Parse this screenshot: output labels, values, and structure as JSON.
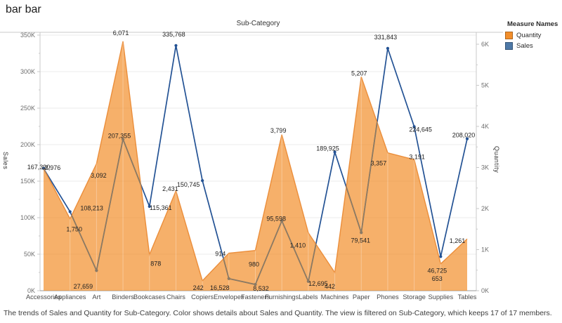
{
  "title": "bar bar",
  "caption": "The trends of Sales and Quantity for Sub-Category.  Color shows details about Sales and Quantity. The view is filtered on Sub-Category, which keeps 17 of 17 members.",
  "legend": {
    "title": "Measure Names",
    "items": [
      {
        "label": "Quantity",
        "color": "#f28e2b"
      },
      {
        "label": "Sales",
        "color": "#4e79a7"
      }
    ]
  },
  "chart_data": {
    "type": "dual-axis combo (area + line)",
    "title": "Sub-Category",
    "categories": [
      "Accessories",
      "Appliances",
      "Art",
      "Binders",
      "Bookcases",
      "Chairs",
      "Copiers",
      "Envelopes",
      "Fasteners",
      "Furnishings",
      "Labels",
      "Machines",
      "Paper",
      "Phones",
      "Storage",
      "Supplies",
      "Tables"
    ],
    "series": [
      {
        "name": "Quantity",
        "type": "area",
        "axis": "right",
        "color": "#f28e2b",
        "values": [
          2976,
          1750,
          3092,
          6071,
          878,
          2431,
          242,
          914,
          980,
          3799,
          1410,
          442,
          5207,
          3357,
          3191,
          653,
          1261
        ]
      },
      {
        "name": "Sales",
        "type": "line",
        "axis": "left",
        "color": "#235294",
        "color_over_area": "#8a7a65",
        "values": [
          167390,
          108213,
          27659,
          207355,
          115361,
          335768,
          150745,
          16528,
          8532,
          95598,
          12695,
          189925,
          79541,
          331843,
          224645,
          46725,
          208020
        ]
      }
    ],
    "left_axis": {
      "title": "Sales",
      "ticks": [
        "0K",
        "50K",
        "100K",
        "150K",
        "200K",
        "250K",
        "300K",
        "350K"
      ],
      "range": [
        0,
        350000
      ]
    },
    "right_axis": {
      "title": "Quantity",
      "ticks": [
        "0K",
        "1K",
        "2K",
        "3K",
        "4K",
        "5K",
        "6K"
      ],
      "range": [
        0,
        6000
      ]
    },
    "grid": "horizontal",
    "legend_position": "top-right",
    "xlabel": "Sub-Category"
  }
}
